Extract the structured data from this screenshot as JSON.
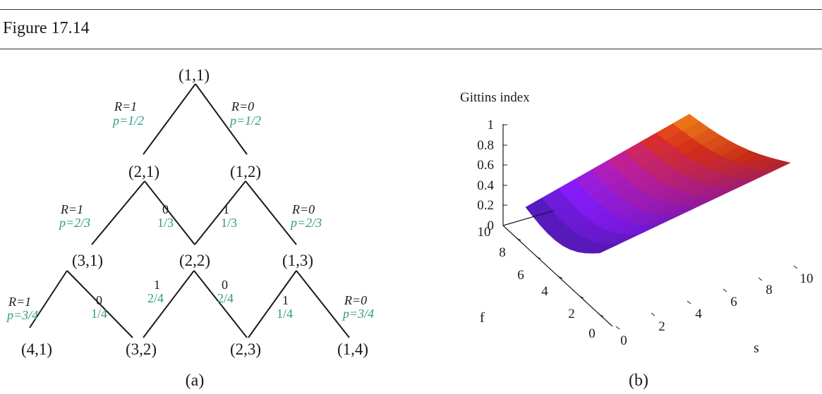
{
  "header": {
    "title": "Figure 17.14"
  },
  "colors": {
    "text": "#1a1a1a",
    "prob": "#2f9a86",
    "line": "#1a1a1a"
  },
  "panel_a": {
    "caption": "(a)",
    "nodes": [
      "(1,1)",
      "(2,1)",
      "(1,2)",
      "(3,1)",
      "(2,2)",
      "(1,3)",
      "(4,1)",
      "(3,2)",
      "(2,3)",
      "(1,4)"
    ],
    "edge_labels": [
      {
        "r": "R=1",
        "p": "p=1/2"
      },
      {
        "r": "R=0",
        "p": "p=1/2"
      },
      {
        "r": "R=1",
        "p": "p=2/3"
      },
      {
        "r": "0",
        "p": "1/3"
      },
      {
        "r": "1",
        "p": "1/3"
      },
      {
        "r": "R=0",
        "p": "p=2/3"
      },
      {
        "r": "R=1",
        "p": "p=3/4"
      },
      {
        "r": "0",
        "p": "1/4"
      },
      {
        "r": "1",
        "p": "2/4"
      },
      {
        "r": "0",
        "p": "2/4"
      },
      {
        "r": "1",
        "p": "1/4"
      },
      {
        "r": "R=0",
        "p": "p=3/4"
      }
    ]
  },
  "panel_b": {
    "caption": "(b)",
    "title": "Gittins index",
    "z_ticks": [
      "1",
      "0.8",
      "0.6",
      "0.4",
      "0.2",
      "0"
    ],
    "f_ticks": [
      "10",
      "8",
      "6",
      "4",
      "2",
      "0"
    ],
    "s_ticks": [
      "0",
      "2",
      "4",
      "6",
      "8",
      "10"
    ],
    "f_label": "f",
    "s_label": "s",
    "colormap": [
      "#4a1ab0",
      "#8a1cff",
      "#c01fa0",
      "#e0301a",
      "#f6a915"
    ]
  }
}
